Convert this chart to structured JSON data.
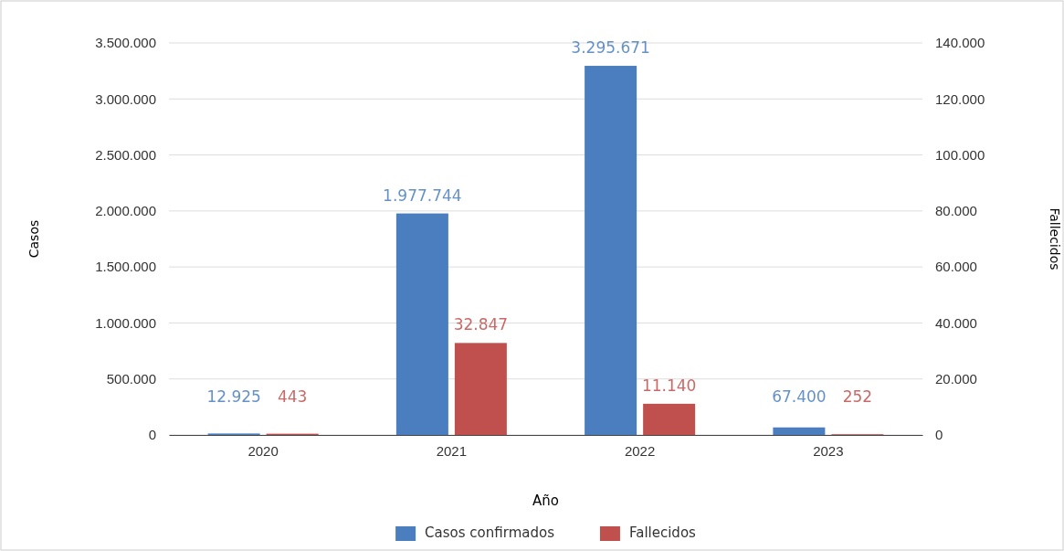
{
  "chart_data": {
    "type": "bar",
    "xlabel": "Año",
    "ylabel": "Casos",
    "y2label": "Fallecidos",
    "categories": [
      "2020",
      "2021",
      "2022",
      "2023"
    ],
    "series": [
      {
        "name": "Casos confirmados",
        "color": "#4a7ebf",
        "values": [
          12925,
          1977744,
          3295671,
          67400
        ],
        "value_labels": [
          "12.925",
          "1.977.744",
          "3.295.671",
          "67.400"
        ]
      },
      {
        "name": "Fallecidos",
        "color": "#c0504d",
        "axis": "y2",
        "values": [
          443,
          32847,
          11140,
          252
        ],
        "value_labels": [
          "443",
          "32.847",
          "11.140",
          "252"
        ]
      }
    ],
    "ylim": [
      0,
      3500000
    ],
    "yticks": [
      0,
      {
        "value": 500000,
        "label": "500.000"
      },
      {
        "value": 1000000,
        "label": "1.000.000"
      },
      {
        "value": 1500000,
        "label": "1.500.000"
      },
      {
        "value": 2000000,
        "label": "2.000.000"
      },
      {
        "value": 2500000,
        "label": "2.500.000"
      },
      {
        "value": 3000000,
        "label": "3.000.000"
      },
      {
        "value": 3500000,
        "label": "3.500.000"
      }
    ],
    "y2lim": [
      0,
      140000
    ],
    "y2ticks": [
      0,
      {
        "value": 20000,
        "label": "20.000"
      },
      {
        "value": 40000,
        "label": "40.000"
      },
      {
        "value": 60000,
        "label": "60.000"
      },
      {
        "value": 80000,
        "label": "80.000"
      },
      {
        "value": 100000,
        "label": "100.000"
      },
      {
        "value": 120000,
        "label": "120.000"
      },
      {
        "value": 140000,
        "label": "140.000"
      }
    ],
    "grid": "y",
    "legend": "bottom"
  }
}
